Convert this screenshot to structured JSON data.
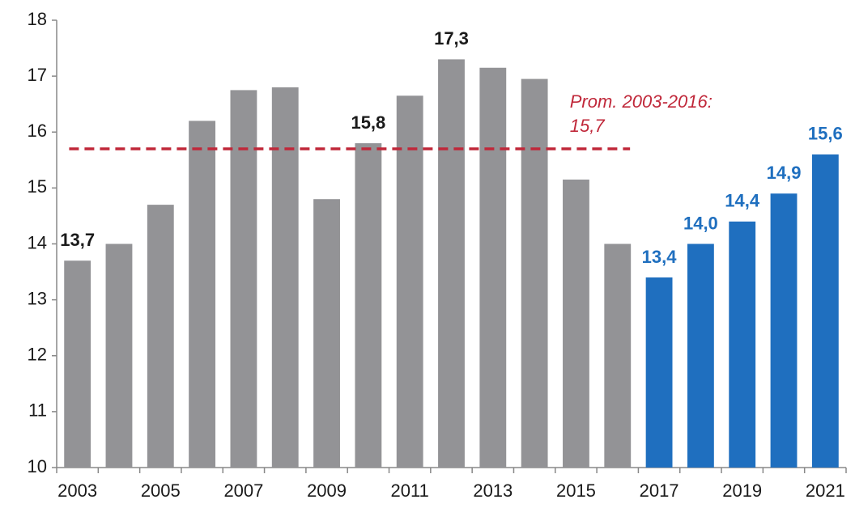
{
  "chart_data": {
    "type": "bar",
    "categories": [
      "2003",
      null,
      "2005",
      null,
      "2007",
      null,
      "2009",
      null,
      "2011",
      null,
      "2013",
      null,
      "2015",
      null,
      "2017",
      null,
      "2019",
      null,
      "2021"
    ],
    "values": [
      13.7,
      14.0,
      14.7,
      16.2,
      16.75,
      16.8,
      14.8,
      15.8,
      16.65,
      17.3,
      17.15,
      16.95,
      15.15,
      14.0,
      13.4,
      14.0,
      14.4,
      14.9,
      15.6
    ],
    "value_labels": [
      "13,7",
      null,
      null,
      null,
      null,
      null,
      null,
      "15,8",
      null,
      "17,3",
      null,
      null,
      null,
      null,
      "13,4",
      "14,0",
      "14,4",
      "14,9",
      "15,6"
    ],
    "colors": [
      "#939396",
      "#939396",
      "#939396",
      "#939396",
      "#939396",
      "#939396",
      "#939396",
      "#939396",
      "#939396",
      "#939396",
      "#939396",
      "#939396",
      "#939396",
      "#939396",
      "#1f6fbf",
      "#1f6fbf",
      "#1f6fbf",
      "#1f6fbf",
      "#1f6fbf"
    ],
    "label_colors": [
      "#1a1a1a",
      "#1a1a1a",
      "#1a1a1a",
      "#1a1a1a",
      "#1a1a1a",
      "#1a1a1a",
      "#1a1a1a",
      "#1a1a1a",
      "#1a1a1a",
      "#1a1a1a",
      "#1a1a1a",
      "#1a1a1a",
      "#1a1a1a",
      "#1a1a1a",
      "#1f6fbf",
      "#1f6fbf",
      "#1f6fbf",
      "#1f6fbf",
      "#1f6fbf"
    ],
    "ylim": [
      10,
      18
    ],
    "yticks": [
      10,
      11,
      12,
      13,
      14,
      15,
      16,
      17,
      18
    ],
    "grid": false,
    "reference_line": {
      "value": 15.7,
      "label": "Prom. 2003-2016:",
      "value_label": "15,7",
      "color": "#c0283a"
    }
  }
}
